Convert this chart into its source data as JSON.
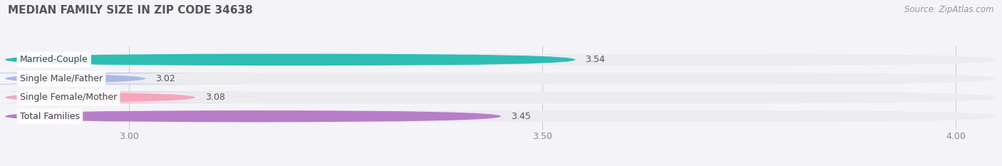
{
  "title": "MEDIAN FAMILY SIZE IN ZIP CODE 34638",
  "source": "Source: ZipAtlas.com",
  "categories": [
    "Married-Couple",
    "Single Male/Father",
    "Single Female/Mother",
    "Total Families"
  ],
  "values": [
    3.54,
    3.02,
    3.08,
    3.45
  ],
  "bar_colors": [
    "#2dbdb5",
    "#aab8e8",
    "#f4a6bc",
    "#b87dc8"
  ],
  "bar_bg_color": "#ebebf0",
  "xmin": 2.85,
  "xmax": 4.05,
  "xlim_display": [
    2.85,
    4.05
  ],
  "xticks": [
    3.0,
    3.5,
    4.0
  ],
  "title_fontsize": 11,
  "label_fontsize": 9,
  "value_fontsize": 9,
  "source_fontsize": 8.5,
  "background_color": "#f4f4f8",
  "bar_height": 0.62,
  "bar_gap": 0.38
}
